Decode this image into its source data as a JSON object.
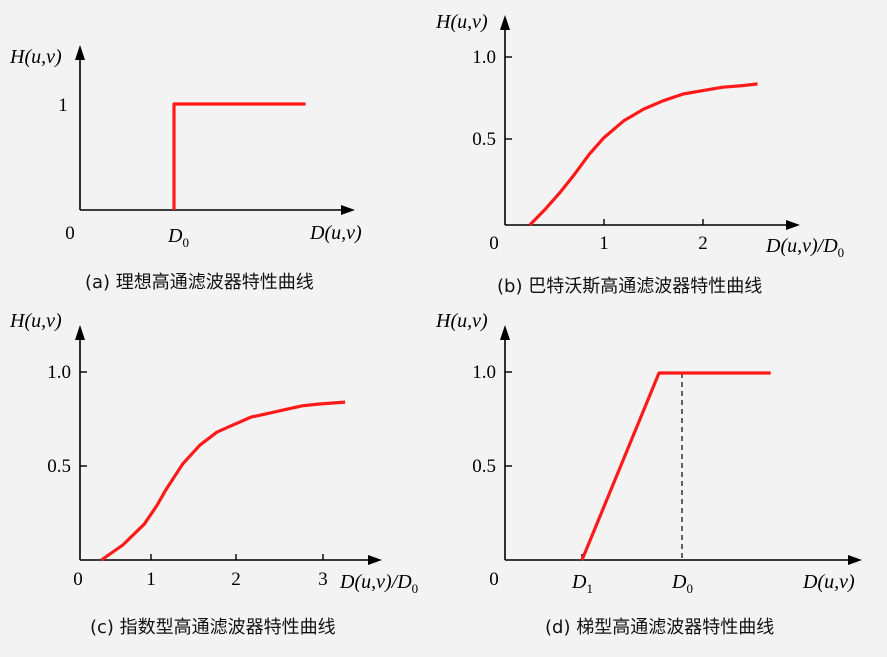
{
  "chart_data": [
    {
      "type": "line",
      "caption": "(a) 理想高通滤波器特性曲线",
      "ylabel": "H(u,v)",
      "xlabel": "D(u,v)",
      "x_ticks": [
        "0",
        "D0"
      ],
      "y_ticks": [
        "1"
      ],
      "series": [
        {
          "x": [
            1,
            1,
            2.4
          ],
          "y": [
            0,
            1,
            1
          ]
        }
      ],
      "xlim": [
        0,
        2.4
      ],
      "ylim": [
        0,
        1.5
      ],
      "color": "#ff1a1a"
    },
    {
      "type": "line",
      "caption": "(b) 巴特沃斯高通滤波器特性曲线",
      "ylabel": "H(u,v)",
      "xlabel": "D(u,v)/D0",
      "x_ticks": [
        "0",
        "1",
        "2"
      ],
      "y_ticks": [
        "0.5",
        "1.0"
      ],
      "series": [
        {
          "x": [
            0.25,
            0.4,
            0.55,
            0.7,
            0.85,
            1.0,
            1.2,
            1.4,
            1.6,
            1.8,
            2.0,
            2.2,
            2.4,
            2.55
          ],
          "y": [
            0.0,
            0.09,
            0.19,
            0.3,
            0.42,
            0.52,
            0.62,
            0.69,
            0.74,
            0.78,
            0.8,
            0.82,
            0.83,
            0.84
          ]
        }
      ],
      "xlim": [
        0,
        2.8
      ],
      "ylim": [
        0,
        1.15
      ],
      "color": "#ff1a1a"
    },
    {
      "type": "line",
      "caption": "(c) 指数型高通滤波器特性曲线",
      "ylabel": "H(u,v)",
      "xlabel": "D(u,v)/D0",
      "x_ticks": [
        "0",
        "1",
        "2",
        "3"
      ],
      "y_ticks": [
        "0.5",
        "1.0"
      ],
      "series": [
        {
          "x": [
            0.25,
            0.5,
            0.75,
            0.9,
            1.0,
            1.2,
            1.4,
            1.6,
            1.8,
            2.0,
            2.2,
            2.4,
            2.6,
            2.8,
            3.1
          ],
          "y": [
            0.0,
            0.08,
            0.19,
            0.29,
            0.37,
            0.51,
            0.61,
            0.68,
            0.72,
            0.76,
            0.78,
            0.8,
            0.82,
            0.83,
            0.84
          ]
        }
      ],
      "xlim": [
        0,
        3.4
      ],
      "ylim": [
        0,
        1.15
      ],
      "color": "#ff1a1a"
    },
    {
      "type": "line",
      "caption": "(d) 梯型高通滤波器特性曲线",
      "ylabel": "H(u,v)",
      "xlabel": "D(u,v)",
      "x_ticks": [
        "0",
        "D1",
        "D0"
      ],
      "y_ticks": [
        "0.5",
        "1.0"
      ],
      "series": [
        {
          "x": [
            1,
            2,
            3.45
          ],
          "y": [
            0,
            1,
            1
          ]
        }
      ],
      "xlim": [
        0,
        3.7
      ],
      "ylim": [
        0,
        1.15
      ],
      "color": "#ff1a1a"
    }
  ]
}
